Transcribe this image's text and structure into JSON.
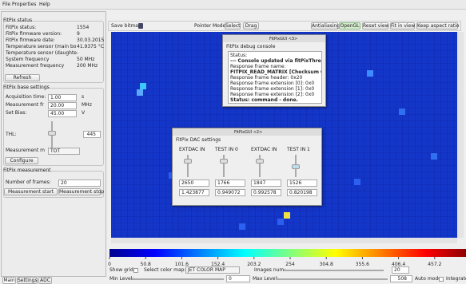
{
  "menu": [
    "File",
    "Properties",
    "Help"
  ],
  "status": {
    "title": "FitPix status",
    "rows": [
      [
        "FitPix status:",
        "1554"
      ],
      [
        "FitPix firmware version:",
        "9"
      ],
      [
        "FitPix firmware date:",
        "30.03.2015"
      ],
      [
        "Temperature sensor (main bo",
        "41.9375 °C"
      ],
      [
        "Temperature sensor (daughte",
        "-"
      ],
      [
        "System frequency",
        "50 MHz"
      ],
      [
        "Measurement frequency",
        "200 MHz"
      ]
    ],
    "refresh": "Refresh"
  },
  "base_settings": {
    "title": "FitPix base settings",
    "rows": [
      [
        "Acquisition time:",
        "1.00",
        "s"
      ],
      [
        "Measurement fr",
        "20.00",
        "MHz"
      ],
      [
        "Set Bias:",
        "45.00",
        "V"
      ]
    ],
    "thl_label": "THL:",
    "thl_value": "445",
    "mode_label": "Measurement m",
    "mode_value": "TOT",
    "configure": "Configure"
  },
  "measurement": {
    "title": "FitPix measurement",
    "frames_label": "Number of frames:",
    "frames_value": "20",
    "start": "Measurement start",
    "stop": "Measurement stop"
  },
  "tabs": [
    "Main",
    "Settings",
    "ADC"
  ],
  "toolbar": {
    "save": "Save bitmap",
    "pointer_mode": "Pointer Mode",
    "select": "Select",
    "drag": "Drag",
    "antialiasing": "Antialiasing",
    "opengl": "OpenGL",
    "reset": "Reset view",
    "fit": "Fit in view",
    "aspect": "Keep aspect ratio"
  },
  "debug_window": {
    "title": "FitPixGUI <3>",
    "heading": "FitPix debug console",
    "lines": [
      "Status:",
      "--- Console updated via fitPixThread ---",
      "Response frame name:",
      "FITPIX_READ_MATRIX [Checksum OK]",
      "Response frame header: 0x20",
      "Response frame extension [0]: 0x0",
      "Response frame extension [1]: 0x0",
      "Response frame extension [2]: 0x0",
      "Status: command - done."
    ]
  },
  "dac_window": {
    "title": "FitPixGUI <2>",
    "heading": "FitPix DAC settings",
    "columns": [
      {
        "name": "EXTDAC IN",
        "value": "2650",
        "voltage": "1.423877"
      },
      {
        "name": "TEST IN 0",
        "value": "1766",
        "voltage": "0.949072"
      },
      {
        "name": "EXTDAC IN",
        "value": "1847",
        "voltage": "0.992578"
      },
      {
        "name": "TEST IN 1",
        "value": "1526",
        "voltage": "0.820198"
      }
    ]
  },
  "colorbar": {
    "ticks": [
      0,
      50.8,
      101.6,
      152.4,
      203.2,
      254,
      304.8,
      355.6,
      406.4,
      457.2
    ]
  },
  "controls": {
    "show_grid": "Show grid:",
    "color_map_label": "Select color map:",
    "color_map": "JET COLOR MAP",
    "images_label": "Images num:",
    "images_value": "20",
    "min_label": "Min Level:",
    "min_level": 0,
    "max_label": "Max Level:",
    "max_level": 508,
    "auto_label": "Auto mode:",
    "integrate": "Integrate mode"
  }
}
